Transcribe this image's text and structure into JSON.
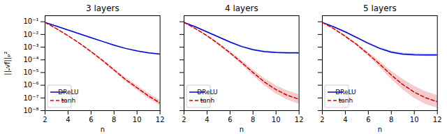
{
  "chart_data": [
    {
      "type": "line",
      "title": "3 layers",
      "xlabel": "n",
      "ylabel": "||𝒜f||ₚ²",
      "x": [
        2,
        3,
        4,
        5,
        6,
        7,
        8,
        9,
        10,
        11,
        12
      ],
      "xlim": [
        2,
        12
      ],
      "xticks": [
        2,
        4,
        6,
        8,
        10,
        12
      ],
      "ylim": [
        1e-08,
        0.3
      ],
      "yticks": [
        {
          "value": 1e-08,
          "label": "10⁻⁸"
        },
        {
          "value": 1e-07,
          "label": "10⁻⁷"
        },
        {
          "value": 1e-06,
          "label": "10⁻⁶"
        },
        {
          "value": 1e-05,
          "label": "10⁻⁵"
        },
        {
          "value": 0.0001,
          "label": "10⁻⁴"
        },
        {
          "value": 0.001,
          "label": "10⁻³"
        },
        {
          "value": 0.01,
          "label": "10⁻²"
        },
        {
          "value": 0.1,
          "label": "10⁻¹"
        }
      ],
      "log": "y",
      "grid": false,
      "legend": "lower left",
      "series": [
        {
          "name": "DReLU",
          "color": "#0000cc",
          "line_style": "solid",
          "values": [
            0.08913,
            0.04467,
            0.02239,
            0.01122,
            0.005623,
            0.002818,
            0.001413,
            0.0007943,
            0.0005012,
            0.0003548,
            0.0002818
          ],
          "lower": [
            0.08511,
            0.04266,
            0.02138,
            0.01047,
            0.005248,
            0.00263,
            0.001288,
            0.0007244,
            0.0004571,
            0.0003236,
            0.000257
          ],
          "upper": [
            0.09333,
            0.04677,
            0.02344,
            0.01202,
            0.006026,
            0.00302,
            0.001549,
            0.000871,
            0.0005495,
            0.000389,
            0.000309
          ]
        },
        {
          "name": "tanh",
          "color": "#cc0000",
          "line_style": "dashed",
          "values": [
            0.08913,
            0.02818,
            0.007943,
            0.001995,
            0.0004467,
            8.913e-05,
            1.585e-05,
            2.818e-06,
            6.31e-07,
            1.413e-07,
            3.981e-08
          ],
          "lower": [
            0.08511,
            0.0263,
            0.007244,
            0.001778,
            0.0003802,
            7.244e-05,
            1.202e-05,
            1.995e-06,
            4.169e-07,
            8.913e-08,
            2.399e-08
          ],
          "upper": [
            0.09333,
            0.0302,
            0.00871,
            0.002239,
            0.0005248,
            0.0001096,
            2.089e-05,
            3.981e-06,
            9.55e-07,
            2.239e-07,
            6.607e-08
          ]
        }
      ]
    },
    {
      "type": "line",
      "title": "4 layers",
      "xlabel": "n",
      "x": [
        2,
        3,
        4,
        5,
        6,
        7,
        8,
        9,
        10,
        11,
        12
      ],
      "xlim": [
        2,
        12
      ],
      "xticks": [
        2,
        4,
        6,
        8,
        10,
        12
      ],
      "ylim": [
        1e-08,
        0.3
      ],
      "yticks": [
        1e-08,
        1e-07,
        1e-06,
        1e-05,
        0.0001,
        0.001,
        0.01,
        0.1
      ],
      "log": "y",
      "grid": false,
      "legend": "lower left",
      "tick_labels": "x",
      "series": [
        {
          "name": "DReLU",
          "color": "#0000cc",
          "line_style": "solid",
          "values": [
            0.08913,
            0.03981,
            0.01585,
            0.00631,
            0.002512,
            0.001122,
            0.000631,
            0.0004467,
            0.0003802,
            0.0003548,
            0.0003548
          ],
          "lower": [
            0.08511,
            0.03715,
            0.01445,
            0.005623,
            0.002239,
            0.0009772,
            0.000537,
            0.0003802,
            0.0003236,
            0.000302,
            0.000302
          ],
          "upper": [
            0.09333,
            0.04266,
            0.01738,
            0.007079,
            0.002818,
            0.001288,
            0.0007413,
            0.0005248,
            0.0004467,
            0.0004169,
            0.0004169
          ]
        },
        {
          "name": "tanh",
          "color": "#cc0000",
          "line_style": "dashed",
          "values": [
            0.08913,
            0.02818,
            0.007943,
            0.001778,
            0.0003548,
            6.31e-05,
            1e-05,
            1.778e-06,
            4.467e-07,
            1.585e-07,
            7.943e-08
          ],
          "lower": [
            0.08318,
            0.0257,
            0.006918,
            0.001445,
            0.0002692,
            4.365e-05,
            6.026e-06,
            9.333e-07,
            2.089e-07,
            6.918e-08,
            3.311e-08
          ],
          "upper": [
            0.0955,
            0.0309,
            0.00912,
            0.002188,
            0.0004677,
            9.12e-05,
            1.66e-05,
            3.388e-06,
            9.55e-07,
            3.631e-07,
            1.905e-07
          ]
        }
      ]
    },
    {
      "type": "line",
      "title": "5 layers",
      "xlabel": "n",
      "x": [
        2,
        3,
        4,
        5,
        6,
        7,
        8,
        9,
        10,
        11,
        12
      ],
      "xlim": [
        2,
        12
      ],
      "xticks": [
        2,
        4,
        6,
        8,
        10,
        12
      ],
      "ylim": [
        1e-08,
        0.3
      ],
      "yticks": [
        1e-08,
        1e-07,
        1e-06,
        1e-05,
        0.0001,
        0.001,
        0.01,
        0.1
      ],
      "log": "y",
      "grid": false,
      "legend": "lower left",
      "tick_labels": "x",
      "series": [
        {
          "name": "DReLU",
          "color": "#0000cc",
          "line_style": "solid",
          "values": [
            0.08913,
            0.03981,
            0.01585,
            0.005623,
            0.001995,
            0.0007943,
            0.0003981,
            0.0002818,
            0.0002512,
            0.0002399,
            0.0002399
          ],
          "lower": [
            0.08511,
            0.03715,
            0.01413,
            0.004786,
            0.00166,
            0.0006457,
            0.0003162,
            0.0002239,
            0.0001995,
            0.0001905,
            0.0001905
          ],
          "upper": [
            0.09333,
            0.04266,
            0.01778,
            0.006607,
            0.002399,
            0.0009772,
            0.0005012,
            0.0003548,
            0.0003162,
            0.000302,
            0.000302
          ]
        },
        {
          "name": "tanh",
          "color": "#cc0000",
          "line_style": "dashed",
          "values": [
            0.08913,
            0.02818,
            0.007079,
            0.001585,
            0.0002818,
            4.467e-05,
            6.31e-06,
            1.122e-06,
            2.818e-07,
            1e-07,
            5.012e-08
          ],
          "lower": [
            0.08318,
            0.0257,
            0.006026,
            0.001259,
            0.0001995,
            2.692e-05,
            3.02e-06,
            4.266e-07,
            9.333e-08,
            3.162e-08,
            1.585e-08
          ],
          "upper": [
            0.0955,
            0.0309,
            0.008318,
            0.001995,
            0.0003981,
            7.413e-05,
            1.318e-05,
            2.951e-06,
            8.511e-07,
            3.162e-07,
            1.585e-07
          ]
        }
      ]
    }
  ]
}
